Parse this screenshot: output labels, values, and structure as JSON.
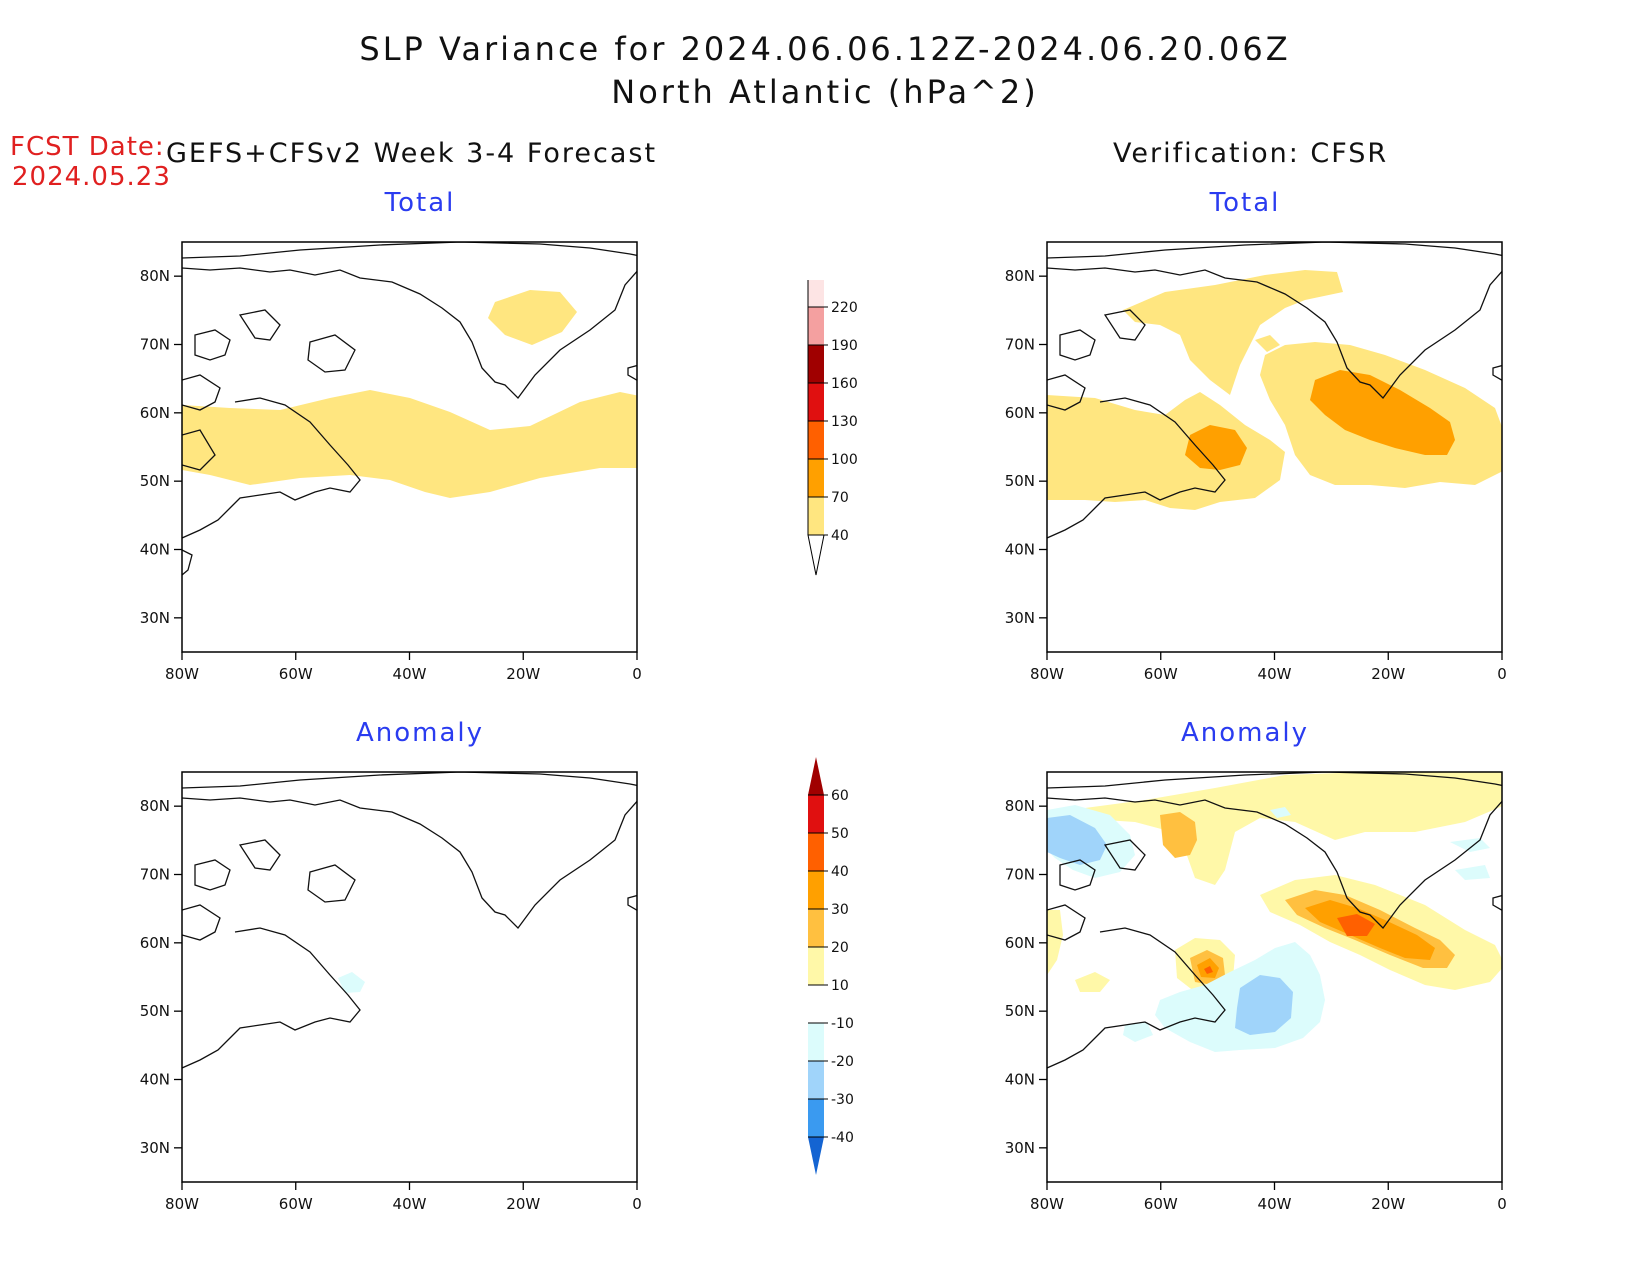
{
  "title": {
    "line1": "SLP Variance for 2024.06.06.12Z-2024.06.20.06Z",
    "line2": "North Atlantic (hPa^2)"
  },
  "fcst": {
    "label": "FCST Date:",
    "date": "2024.05.23"
  },
  "columns": {
    "left": "GEFS+CFSv2 Week 3-4 Forecast",
    "right": "Verification: CFSR"
  },
  "panels": {
    "fcst_total_title": "Total",
    "fcst_anom_title": "Anomaly",
    "ver_total_title": "Total",
    "ver_anom_title": "Anomaly"
  },
  "axes": {
    "x_ticks": [
      "80W",
      "60W",
      "40W",
      "20W",
      "0"
    ],
    "y_ticks": [
      "80N",
      "70N",
      "60N",
      "50N",
      "40N",
      "30N"
    ],
    "lon_range": [
      -80,
      0
    ],
    "lat_range": [
      25,
      85
    ]
  },
  "colorbars": {
    "total": {
      "labels": [
        "40",
        "70",
        "100",
        "130",
        "160",
        "190",
        "220"
      ],
      "colors": [
        "#ffe680",
        "#ffa000",
        "#ff6000",
        "#e01010",
        "#a00000",
        "#f4a0a0",
        "#fde4e4"
      ]
    },
    "anomaly": {
      "labels": [
        "60",
        "50",
        "40",
        "30",
        "20",
        "10",
        "-10",
        "-20",
        "-30",
        "-40"
      ],
      "colors_top_down": [
        "#a00000",
        "#e01010",
        "#ff6000",
        "#ffa000",
        "#ffc040",
        "#fff8a8",
        "#ffffff",
        "#dcfcfc",
        "#a0d4fa",
        "#3a9af0",
        "#1464d2"
      ]
    }
  },
  "colors": {
    "yellow_40": "#ffe680",
    "orange_70": "#ffa000",
    "pale_yellow": "#fff8a8",
    "light_orange": "#ffc040",
    "orange_40": "#ff6000",
    "cyan_light": "#dcfcfc",
    "blue_light": "#a0d4fa"
  }
}
